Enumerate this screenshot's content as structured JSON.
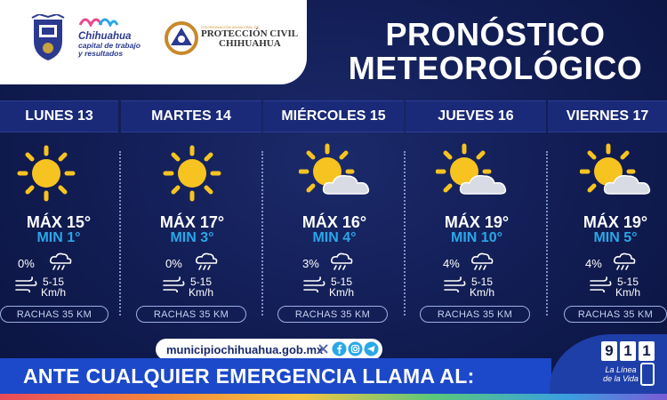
{
  "header": {
    "city_logo_line1": "Chihuahua",
    "city_logo_line2": "capital de trabajo",
    "city_logo_line3": "y resultados",
    "pc_small": "COORDINACIÓN MUNICIPAL DE",
    "pc_line1": "PROTECCIÓN CIVIL",
    "pc_line2": "CHIHUAHUA",
    "title_line1": "PRONÓSTICO",
    "title_line2": "METEOROLÓGICO"
  },
  "days": [
    {
      "label": "LUNES 13",
      "icon": "sun-icon",
      "max": "MÁX 15°",
      "min": "MIN 1°",
      "rain": "0%",
      "wind_top": "5-15",
      "wind_bottom": "Km/h",
      "gust": "RACHAS 35 KM"
    },
    {
      "label": "MARTES 14",
      "icon": "sun-icon",
      "max": "MÁX 17°",
      "min": "MIN 3°",
      "rain": "0%",
      "wind_top": "5-15",
      "wind_bottom": "Km/h",
      "gust": "RACHAS 35 KM"
    },
    {
      "label": "MIÉRCOLES 15",
      "icon": "partly-cloudy-icon",
      "max": "MÁX 16°",
      "min": "MIN 4°",
      "rain": "3%",
      "wind_top": "5-15",
      "wind_bottom": "Km/h",
      "gust": "RACHAS 35 KM"
    },
    {
      "label": "JUEVES 16",
      "icon": "partly-cloudy-icon",
      "max": "MÁX 19°",
      "min": "MIN 10°",
      "rain": "4%",
      "wind_top": "5-15",
      "wind_bottom": "Km/h",
      "gust": "RACHAS 35 KM"
    },
    {
      "label": "VIERNES 17",
      "icon": "partly-cloudy-icon",
      "max": "MÁX 19°",
      "min": "MIN 5°",
      "rain": "4%",
      "wind_top": "5-15",
      "wind_bottom": "Km/h",
      "gust": "RACHAS 35 KM"
    }
  ],
  "footer": {
    "website": "municipiochihuahua.gob.mx",
    "banner": "ANTE CUALQUIER EMERGENCIA LLAMA AL:",
    "emergency_digits": [
      "9",
      "1",
      "1"
    ],
    "linea_1": "La Línea",
    "linea_2": "de la Vida"
  },
  "colors": {
    "background": "#111c52",
    "min_temp": "#2aa7e8",
    "banner": "#1c49c9",
    "sun": "#f7c320"
  }
}
